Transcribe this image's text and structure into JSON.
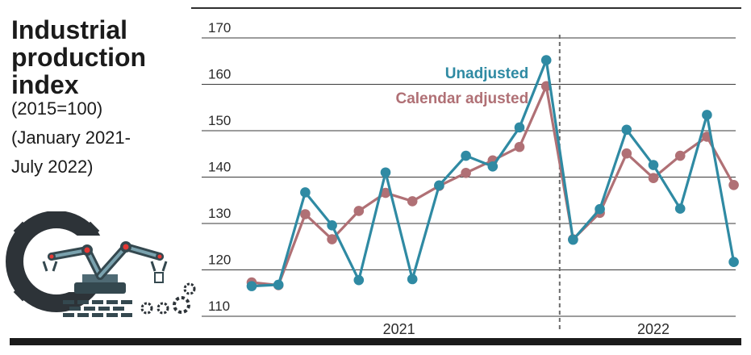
{
  "title": [
    "Industrial",
    "production",
    "index"
  ],
  "subtitle": [
    "(2015=100)",
    "(January 2021-",
    "July 2022)"
  ],
  "icon": "robotic-arm-factory-gear-icon",
  "colors": {
    "unadjusted": "#2f8aa3",
    "calendar_adjusted": "#b07075",
    "grid": "#3a3a3a",
    "text": "#1b1b1b"
  },
  "chart_data": {
    "type": "line",
    "title": "Industrial production index",
    "xlabel": "",
    "ylabel": "",
    "ylim": [
      110,
      170
    ],
    "yticks": [
      110,
      120,
      130,
      140,
      150,
      160,
      170
    ],
    "x": [
      "2021-01",
      "2021-02",
      "2021-03",
      "2021-04",
      "2021-05",
      "2021-06",
      "2021-07",
      "2021-08",
      "2021-09",
      "2021-10",
      "2021-11",
      "2021-12",
      "2022-01",
      "2022-02",
      "2022-03",
      "2022-04",
      "2022-05",
      "2022-06",
      "2022-07"
    ],
    "x_groups": [
      {
        "label": "2021",
        "from": "2021-01",
        "to": "2021-12"
      },
      {
        "label": "2022",
        "from": "2022-01",
        "to": "2022-07"
      }
    ],
    "divider_between": [
      "2021-12",
      "2022-01"
    ],
    "grid": true,
    "legend": "inline labels near peak",
    "series": [
      {
        "name": "Unadjusted",
        "values": [
          116.5,
          116.8,
          136.7,
          129.6,
          117.8,
          141.0,
          118.0,
          138.2,
          144.6,
          142.3,
          150.7,
          165.2,
          126.5,
          133.1,
          150.2,
          142.6,
          133.2,
          153.4,
          121.7
        ]
      },
      {
        "name": "Calendar adjusted",
        "values": [
          117.3,
          116.7,
          132.0,
          126.6,
          132.7,
          136.6,
          134.8,
          138.1,
          140.9,
          143.6,
          146.5,
          159.6,
          126.6,
          132.3,
          145.1,
          139.8,
          144.6,
          148.7,
          138.3
        ]
      }
    ]
  }
}
